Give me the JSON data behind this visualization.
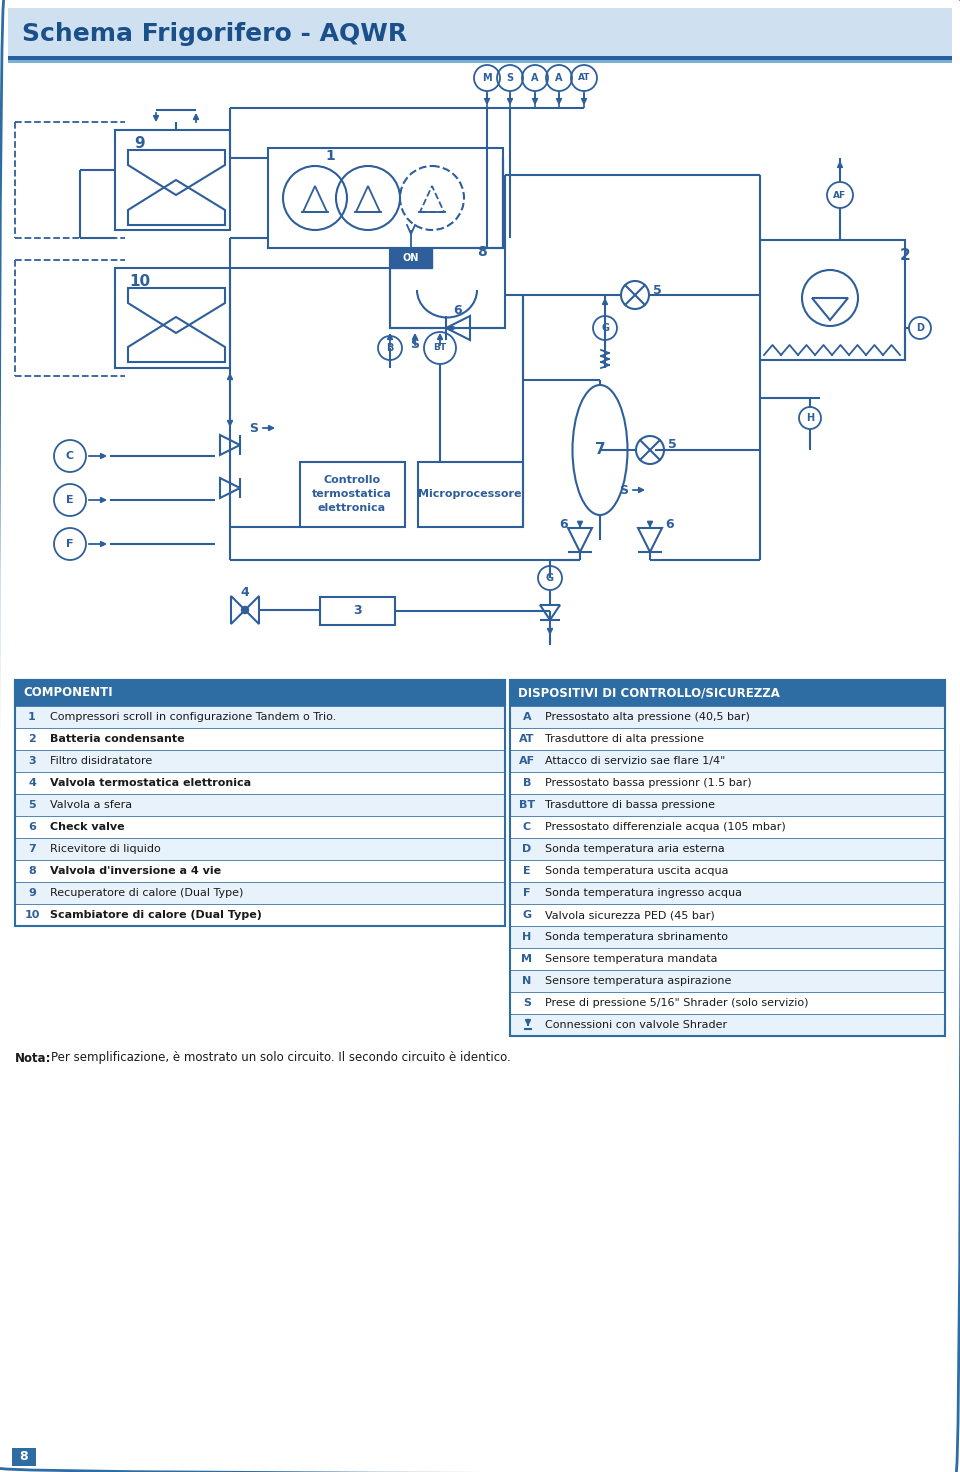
{
  "title": "Schema Frigorifero - AQWR",
  "title_color": "#1b4f8a",
  "header_bg": "#cfe0f0",
  "header_border": "#2e6da4",
  "bg_color": "#ffffff",
  "dc": "#2e5f9a",
  "table_header_bg": "#2e6da4",
  "table_alt_bg": "#e8f2fa",
  "componenti_rows": [
    [
      "1",
      "Compressori scroll in configurazione Tandem o Trio.",
      false
    ],
    [
      "2",
      "Batteria condensante",
      true
    ],
    [
      "3",
      "Filtro disidratatore",
      false
    ],
    [
      "4",
      "Valvola termostatica elettronica",
      true
    ],
    [
      "5",
      "Valvola a sfera",
      false
    ],
    [
      "6",
      "Check valve",
      true
    ],
    [
      "7",
      "Ricevitore di liquido",
      false
    ],
    [
      "8",
      "Valvola d'inversione a 4 vie",
      true
    ],
    [
      "9",
      "Recuperatore di calore (Dual Type)",
      false
    ],
    [
      "10",
      "Scambiatore di calore (Dual Type)",
      true
    ]
  ],
  "dispositivi_rows": [
    [
      "A",
      "Pressostato alta pressione (40,5 bar)",
      false
    ],
    [
      "AT",
      "Trasduttore di alta pressione",
      false
    ],
    [
      "AF",
      "Attacco di servizio sae flare 1/4\"",
      false
    ],
    [
      "B",
      "Pressostato bassa pressionr (1.5 bar)",
      false
    ],
    [
      "BT",
      "Trasduttore di bassa pressione",
      false
    ],
    [
      "C",
      "Pressostato differenziale acqua (105 mbar)",
      false
    ],
    [
      "D",
      "Sonda temperatura aria esterna",
      false
    ],
    [
      "E",
      "Sonda temperatura uscita acqua",
      false
    ],
    [
      "F",
      "Sonda temperatura ingresso acqua",
      false
    ],
    [
      "G",
      "Valvola sicurezza PED (45 bar)",
      false
    ],
    [
      "H",
      "Sonda temperatura sbrinamento",
      false
    ],
    [
      "M",
      "Sensore temperatura mandata",
      false
    ],
    [
      "N",
      "Sensore temperatura aspirazione",
      false
    ],
    [
      "S",
      "Prese di pressione 5/16\" Shrader (solo servizio)",
      false
    ],
    [
      "",
      "Connessioni con valvole Shrader",
      false
    ]
  ],
  "nota": "Per semplificazione, è mostrato un solo circuito. Il secondo circuito è identico.",
  "page_num": "8"
}
